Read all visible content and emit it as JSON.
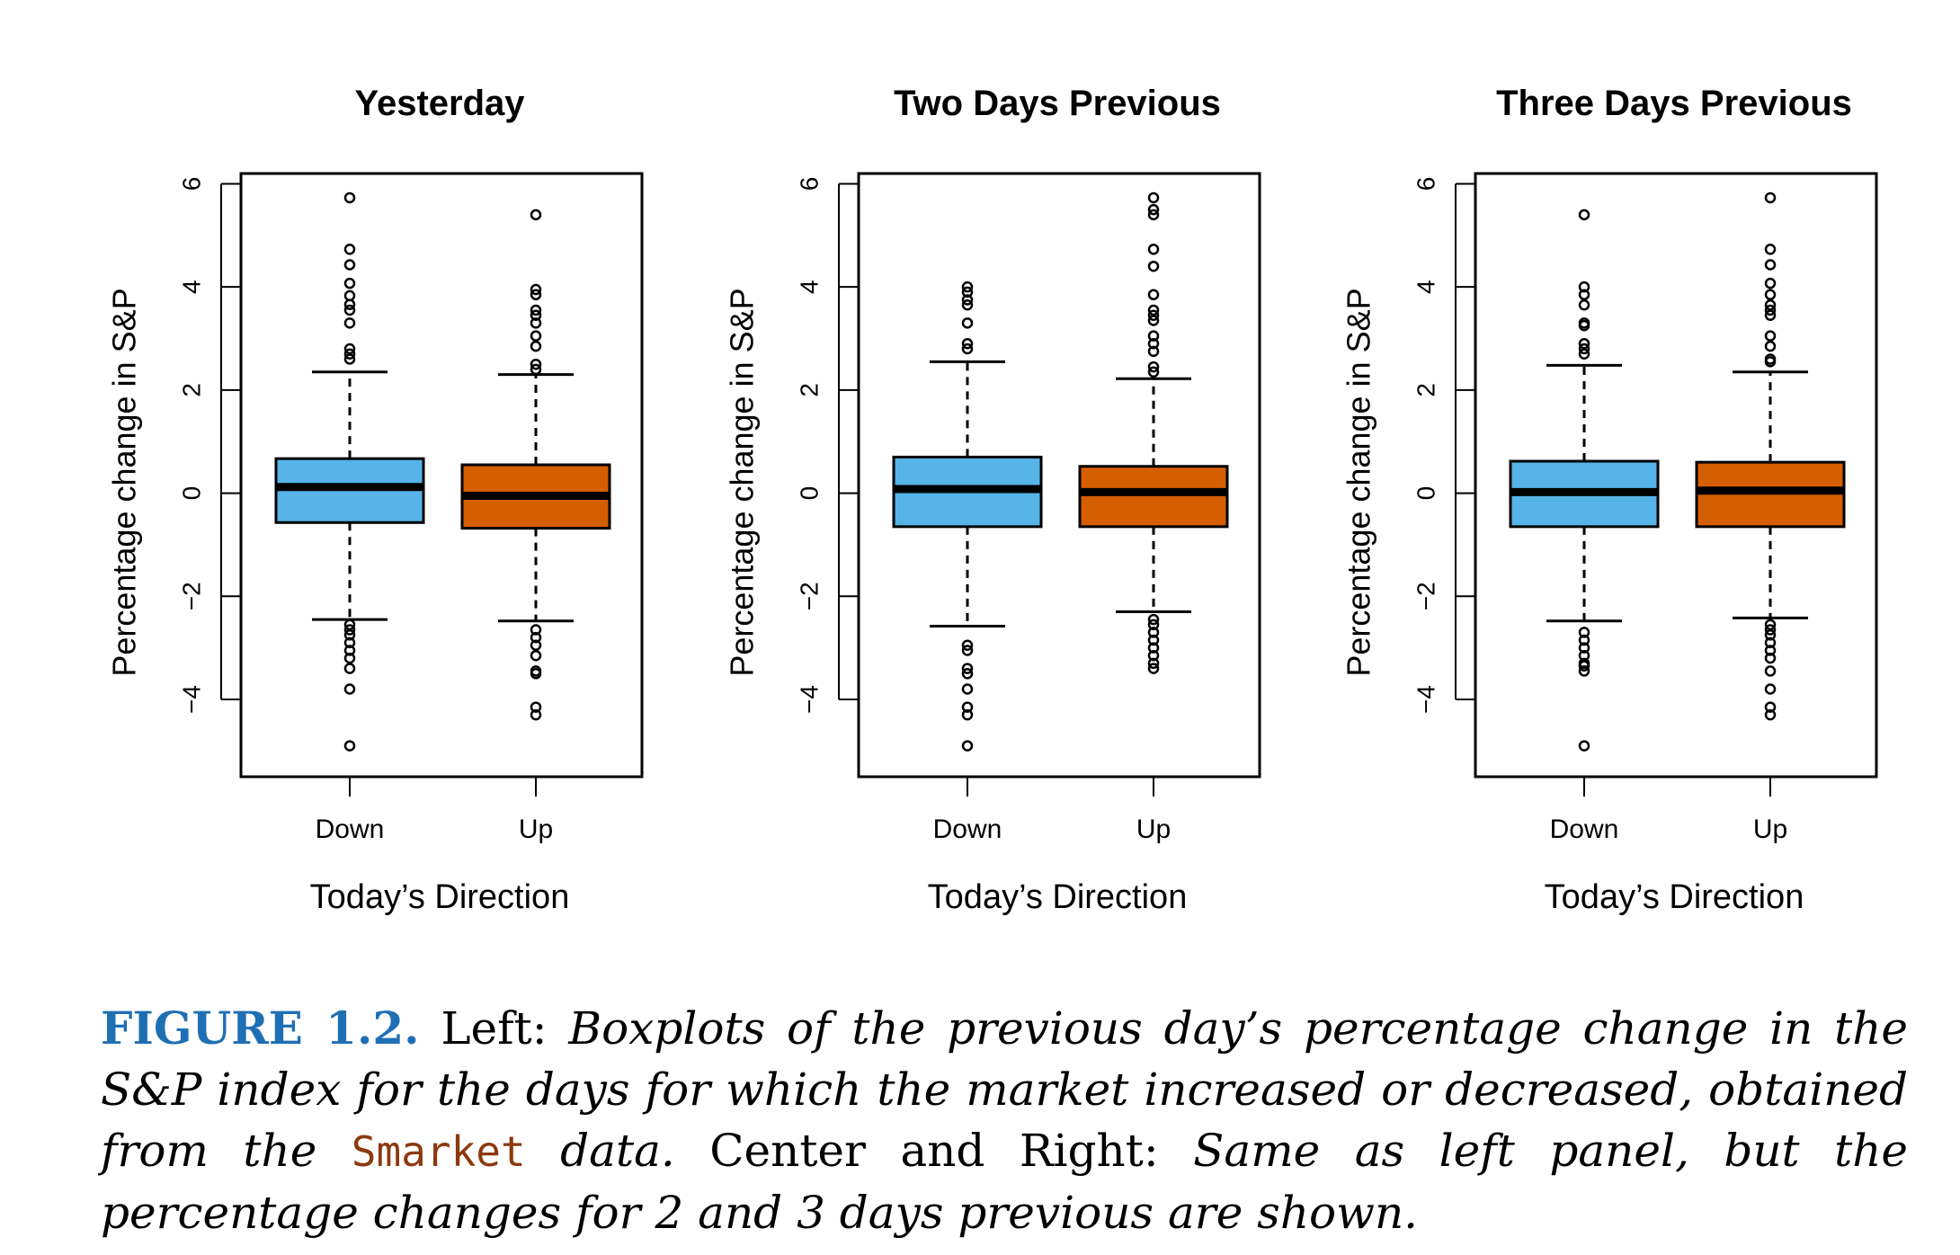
{
  "chart_data": [
    {
      "type": "box",
      "title": "Yesterday",
      "xlabel": "Today’s Direction",
      "ylabel": "Percentage change in S&P",
      "ylim": [
        -5.5,
        6.2
      ],
      "yticks": [
        "-4",
        "-2",
        "0",
        "2",
        "4",
        "6"
      ],
      "yticks_values": [
        -4,
        -2,
        0,
        2,
        4,
        6
      ],
      "categories": [
        "Down",
        "Up"
      ],
      "boxes": [
        {
          "category": "Down",
          "color": "#56B4E9",
          "whisker_low": -2.45,
          "q1": -0.57,
          "median": 0.12,
          "q3": 0.67,
          "whisker_high": 2.35,
          "outliers": [
            5.73,
            4.73,
            4.43,
            4.07,
            3.83,
            3.66,
            3.55,
            3.3,
            2.8,
            2.7,
            2.6,
            -2.55,
            -2.65,
            -2.75,
            -2.9,
            -3.05,
            -3.2,
            -3.4,
            -3.8,
            -4.9
          ]
        },
        {
          "category": "Up",
          "color": "#D55E00",
          "whisker_low": -2.48,
          "q1": -0.68,
          "median": -0.05,
          "q3": 0.55,
          "whisker_high": 2.3,
          "outliers": [
            5.4,
            3.95,
            3.85,
            3.55,
            3.45,
            3.3,
            3.05,
            2.85,
            2.5,
            2.4,
            -2.65,
            -2.8,
            -2.95,
            -3.15,
            -3.45,
            -3.5,
            -4.15,
            -4.3
          ]
        }
      ]
    },
    {
      "type": "box",
      "title": "Two Days Previous",
      "xlabel": "Today’s Direction",
      "ylabel": "Percentage change in S&P",
      "ylim": [
        -5.5,
        6.2
      ],
      "yticks": [
        "-4",
        "-2",
        "0",
        "2",
        "4",
        "6"
      ],
      "yticks_values": [
        -4,
        -2,
        0,
        2,
        4,
        6
      ],
      "categories": [
        "Down",
        "Up"
      ],
      "boxes": [
        {
          "category": "Down",
          "color": "#56B4E9",
          "whisker_low": -2.58,
          "q1": -0.65,
          "median": 0.08,
          "q3": 0.7,
          "whisker_high": 2.55,
          "outliers": [
            4.0,
            3.9,
            3.75,
            3.65,
            3.3,
            2.9,
            2.8,
            -2.95,
            -3.05,
            -3.4,
            -3.5,
            -3.8,
            -4.15,
            -4.3,
            -4.9
          ]
        },
        {
          "category": "Up",
          "color": "#D55E00",
          "whisker_low": -2.3,
          "q1": -0.65,
          "median": 0.02,
          "q3": 0.52,
          "whisker_high": 2.22,
          "outliers": [
            5.73,
            5.5,
            5.4,
            4.73,
            4.4,
            3.85,
            3.55,
            3.45,
            3.35,
            3.05,
            2.9,
            2.75,
            2.45,
            2.35,
            -2.45,
            -2.55,
            -2.7,
            -2.85,
            -3.0,
            -3.15,
            -3.3,
            -3.4
          ]
        }
      ]
    },
    {
      "type": "box",
      "title": "Three Days Previous",
      "xlabel": "Today’s Direction",
      "ylabel": "Percentage change in S&P",
      "ylim": [
        -5.5,
        6.2
      ],
      "yticks": [
        "-4",
        "-2",
        "0",
        "2",
        "4",
        "6"
      ],
      "yticks_values": [
        -4,
        -2,
        0,
        2,
        4,
        6
      ],
      "categories": [
        "Down",
        "Up"
      ],
      "boxes": [
        {
          "category": "Down",
          "color": "#56B4E9",
          "whisker_low": -2.48,
          "q1": -0.65,
          "median": 0.02,
          "q3": 0.62,
          "whisker_high": 2.48,
          "outliers": [
            5.4,
            4.0,
            3.85,
            3.65,
            3.3,
            3.25,
            2.9,
            2.8,
            2.7,
            -2.7,
            -2.85,
            -3.0,
            -3.15,
            -3.3,
            -3.35,
            -3.45,
            -4.9
          ]
        },
        {
          "category": "Up",
          "color": "#D55E00",
          "whisker_low": -2.42,
          "q1": -0.65,
          "median": 0.05,
          "q3": 0.6,
          "whisker_high": 2.35,
          "outliers": [
            5.73,
            4.73,
            4.43,
            4.07,
            3.85,
            3.65,
            3.55,
            3.45,
            3.05,
            2.85,
            2.6,
            2.55,
            -2.55,
            -2.65,
            -2.75,
            -2.9,
            -3.05,
            -3.2,
            -3.45,
            -3.8,
            -4.15,
            -4.3
          ]
        }
      ]
    }
  ],
  "caption": {
    "label": "FIGURE 1.2.",
    "part1": " Left: ",
    "part2": "Boxplots of the previous day’s percentage change in the S&P index for the days for which the market increased or decreased, obtained from the",
    "code": "Smarket",
    "part3": " data.",
    "part4": " Center and Right: ",
    "part5": "Same as left panel, but the percentage changes for 2 and 3 days previous are shown."
  }
}
